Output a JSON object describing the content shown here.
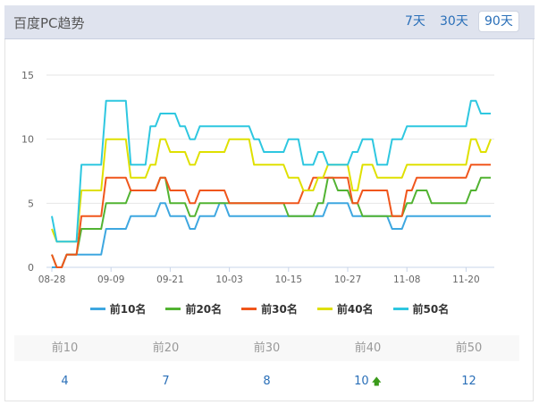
{
  "header": {
    "title": "百度PC趋势",
    "ranges": [
      "7天",
      "30天",
      "90天"
    ],
    "active_range": "90天"
  },
  "chart_data": {
    "type": "line",
    "ylim": [
      0,
      15
    ],
    "yticks": [
      0,
      5,
      10,
      15
    ],
    "grid": true,
    "legend_position": "bottom",
    "xtick_labels": [
      "08-28",
      "09-09",
      "09-21",
      "10-03",
      "10-15",
      "10-27",
      "11-08",
      "11-20"
    ],
    "x": [
      "08-28",
      "08-29",
      "08-30",
      "08-31",
      "09-01",
      "09-02",
      "09-03",
      "09-04",
      "09-05",
      "09-06",
      "09-07",
      "09-08",
      "09-09",
      "09-10",
      "09-11",
      "09-12",
      "09-13",
      "09-14",
      "09-15",
      "09-16",
      "09-17",
      "09-18",
      "09-19",
      "09-20",
      "09-21",
      "09-22",
      "09-23",
      "09-24",
      "09-25",
      "09-26",
      "09-27",
      "09-28",
      "09-29",
      "09-30",
      "10-01",
      "10-02",
      "10-03",
      "10-04",
      "10-05",
      "10-06",
      "10-07",
      "10-08",
      "10-09",
      "10-10",
      "10-11",
      "10-12",
      "10-13",
      "10-14",
      "10-15",
      "10-16",
      "10-17",
      "10-18",
      "10-19",
      "10-20",
      "10-21",
      "10-22",
      "10-23",
      "10-24",
      "10-25",
      "10-26",
      "10-27",
      "10-28",
      "10-29",
      "10-30",
      "10-31",
      "11-01",
      "11-02",
      "11-03",
      "11-04",
      "11-05",
      "11-06",
      "11-07",
      "11-08",
      "11-09",
      "11-10",
      "11-11",
      "11-12",
      "11-13",
      "11-14",
      "11-15",
      "11-16",
      "11-17",
      "11-18",
      "11-19",
      "11-20",
      "11-21",
      "11-22",
      "11-23",
      "11-24",
      "11-25"
    ],
    "series": [
      {
        "name": "前10名",
        "color": "#3ea7e0",
        "values": [
          0,
          0,
          0,
          1,
          1,
          1,
          1,
          1,
          1,
          1,
          1,
          3,
          3,
          3,
          3,
          3,
          4,
          4,
          4,
          4,
          4,
          4,
          5,
          5,
          4,
          4,
          4,
          4,
          3,
          3,
          4,
          4,
          4,
          4,
          5,
          5,
          4,
          4,
          4,
          4,
          4,
          4,
          4,
          4,
          4,
          4,
          4,
          4,
          4,
          4,
          4,
          4,
          4,
          4,
          4,
          4,
          5,
          5,
          5,
          5,
          5,
          4,
          4,
          4,
          4,
          4,
          4,
          4,
          4,
          3,
          3,
          3,
          4,
          4,
          4,
          4,
          4,
          4,
          4,
          4,
          4,
          4,
          4,
          4,
          4,
          4,
          4,
          4,
          4,
          4
        ]
      },
      {
        "name": "前20名",
        "color": "#52b332",
        "values": [
          1,
          0,
          0,
          1,
          1,
          1,
          3,
          3,
          3,
          3,
          3,
          5,
          5,
          5,
          5,
          5,
          6,
          6,
          6,
          6,
          6,
          6,
          7,
          7,
          5,
          5,
          5,
          5,
          4,
          4,
          5,
          5,
          5,
          5,
          5,
          5,
          5,
          5,
          5,
          5,
          5,
          5,
          5,
          5,
          5,
          5,
          5,
          5,
          4,
          4,
          4,
          4,
          4,
          4,
          5,
          5,
          7,
          7,
          6,
          6,
          6,
          5,
          5,
          4,
          4,
          4,
          4,
          4,
          4,
          4,
          4,
          4,
          5,
          5,
          6,
          6,
          6,
          5,
          5,
          5,
          5,
          5,
          5,
          5,
          5,
          6,
          6,
          7,
          7,
          7
        ]
      },
      {
        "name": "前30名",
        "color": "#f0561c",
        "values": [
          1,
          0,
          0,
          1,
          1,
          1,
          4,
          4,
          4,
          4,
          4,
          7,
          7,
          7,
          7,
          7,
          6,
          6,
          6,
          6,
          6,
          6,
          7,
          7,
          6,
          6,
          6,
          6,
          5,
          5,
          6,
          6,
          6,
          6,
          6,
          6,
          5,
          5,
          5,
          5,
          5,
          5,
          5,
          5,
          5,
          5,
          5,
          5,
          5,
          5,
          5,
          6,
          6,
          7,
          7,
          7,
          7,
          7,
          7,
          7,
          7,
          5,
          5,
          6,
          6,
          6,
          6,
          6,
          6,
          4,
          4,
          4,
          6,
          6,
          7,
          7,
          7,
          7,
          7,
          7,
          7,
          7,
          7,
          7,
          7,
          8,
          8,
          8,
          8,
          8
        ]
      },
      {
        "name": "前40名",
        "color": "#dfe000",
        "values": [
          3,
          2,
          2,
          2,
          2,
          2,
          6,
          6,
          6,
          6,
          6,
          10,
          10,
          10,
          10,
          10,
          7,
          7,
          7,
          7,
          8,
          8,
          10,
          10,
          9,
          9,
          9,
          9,
          8,
          8,
          9,
          9,
          9,
          9,
          9,
          9,
          10,
          10,
          10,
          10,
          10,
          8,
          8,
          8,
          8,
          8,
          8,
          8,
          7,
          7,
          7,
          6,
          6,
          6,
          7,
          7,
          8,
          8,
          8,
          8,
          8,
          6,
          6,
          8,
          8,
          8,
          7,
          7,
          7,
          7,
          7,
          7,
          8,
          8,
          8,
          8,
          8,
          8,
          8,
          8,
          8,
          8,
          8,
          8,
          8,
          10,
          10,
          9,
          9,
          10
        ]
      },
      {
        "name": "前50名",
        "color": "#2ec7e0",
        "values": [
          4,
          2,
          2,
          2,
          2,
          2,
          8,
          8,
          8,
          8,
          8,
          13,
          13,
          13,
          13,
          13,
          8,
          8,
          8,
          8,
          11,
          11,
          12,
          12,
          12,
          12,
          11,
          11,
          10,
          10,
          11,
          11,
          11,
          11,
          11,
          11,
          11,
          11,
          11,
          11,
          11,
          10,
          10,
          9,
          9,
          9,
          9,
          9,
          10,
          10,
          10,
          8,
          8,
          8,
          9,
          9,
          8,
          8,
          8,
          8,
          8,
          9,
          9,
          10,
          10,
          10,
          8,
          8,
          8,
          10,
          10,
          10,
          11,
          11,
          11,
          11,
          11,
          11,
          11,
          11,
          11,
          11,
          11,
          11,
          11,
          13,
          13,
          12,
          12,
          12
        ]
      }
    ]
  },
  "summary": {
    "headers": [
      "前10",
      "前20",
      "前30",
      "前40",
      "前50"
    ],
    "values": [
      "4",
      "7",
      "8",
      "10",
      "12"
    ],
    "trend_icon": "arrow-up-icon"
  }
}
